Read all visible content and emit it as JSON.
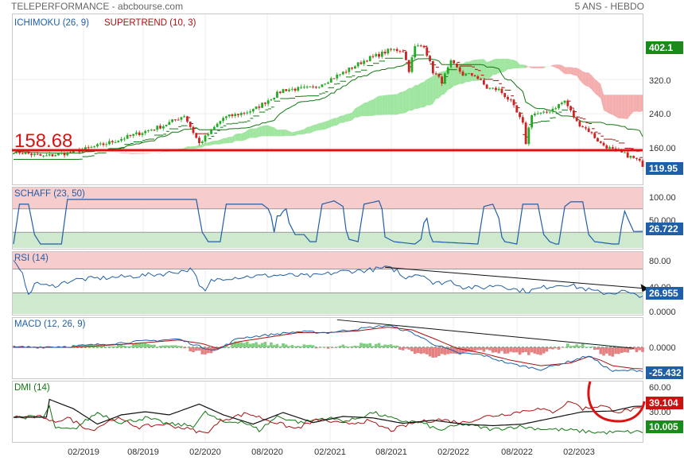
{
  "header": {
    "source": "TELEPERFORMANCE - abcbourse.com",
    "period": "5 ANS - HEBDO"
  },
  "colors": {
    "up": "#22aa22",
    "down": "#cc2222",
    "cloud_bull": "#8fe08f",
    "cloud_bear": "#f2a0a0",
    "supertrend": "#aa1111",
    "kijun": "#117711",
    "blue": "#1f5fa8",
    "black": "#111111",
    "badge_green": "#1a8a1a",
    "badge_blue": "#1f5fa8",
    "badge_red": "#cc1111",
    "zone_red": "#f7cccc",
    "zone_green": "#cfe9cf",
    "hline": "#dd1111"
  },
  "x_axis": {
    "labels": [
      "02/2019",
      "08/2019",
      "02/2020",
      "08/2020",
      "02/2021",
      "08/2021",
      "02/2022",
      "08/2022",
      "02/2023"
    ]
  },
  "panels": {
    "price": {
      "titles": [
        {
          "text": "ICHIMOKU (26, 9)",
          "color": "#1f5fa8"
        },
        {
          "text": "SUPERTREND (10, 3)",
          "color": "#aa1111"
        }
      ],
      "ticks": [
        "320.0",
        "240.0",
        "160.00"
      ],
      "badges": [
        {
          "text": "402.1",
          "color": "#1a8a1a"
        },
        {
          "text": "119.95",
          "color": "#1f5fa8"
        }
      ],
      "level_label": "158.68",
      "series": {
        "close_anchors": [
          [
            0,
            152
          ],
          [
            10,
            140
          ],
          [
            20,
            150
          ],
          [
            30,
            168
          ],
          [
            40,
            190
          ],
          [
            50,
            212
          ],
          [
            57,
            236
          ],
          [
            62,
            170
          ],
          [
            70,
            230
          ],
          [
            80,
            248
          ],
          [
            90,
            296
          ],
          [
            100,
            300
          ],
          [
            110,
            336
          ],
          [
            118,
            368
          ],
          [
            122,
            378
          ],
          [
            126,
            390
          ],
          [
            130,
            388
          ],
          [
            132,
            342
          ],
          [
            134,
            396
          ],
          [
            137,
            400
          ],
          [
            140,
            338
          ],
          [
            143,
            315
          ],
          [
            146,
            360
          ],
          [
            150,
            332
          ],
          [
            154,
            330
          ],
          [
            158,
            300
          ],
          [
            162,
            296
          ],
          [
            166,
            268
          ],
          [
            170,
            215
          ],
          [
            171,
            172
          ],
          [
            173,
            240
          ],
          [
            177,
            240
          ],
          [
            181,
            256
          ],
          [
            184,
            270
          ],
          [
            188,
            220
          ],
          [
            192,
            200
          ],
          [
            196,
            170
          ],
          [
            200,
            155
          ],
          [
            204,
            145
          ],
          [
            208,
            132
          ],
          [
            210,
            120
          ]
        ]
      }
    },
    "schaff": {
      "title": "SCHAFF (23, 50)",
      "ticks": [
        "100.00",
        "50.000"
      ],
      "badge": {
        "text": "26.722",
        "color": "#1f5fa8"
      },
      "upper": 75,
      "lower": 25,
      "series": {
        "anchors": [
          [
            0,
            0
          ],
          [
            2,
            85
          ],
          [
            5,
            85
          ],
          [
            7,
            20
          ],
          [
            9,
            0
          ],
          [
            16,
            0
          ],
          [
            18,
            95
          ],
          [
            61,
            95
          ],
          [
            63,
            25
          ],
          [
            65,
            5
          ],
          [
            69,
            5
          ],
          [
            71,
            85
          ],
          [
            83,
            85
          ],
          [
            85,
            75
          ],
          [
            86,
            60
          ],
          [
            87,
            25
          ],
          [
            88,
            60
          ],
          [
            89,
            60
          ],
          [
            90,
            70
          ],
          [
            91,
            75
          ],
          [
            92,
            45
          ],
          [
            94,
            20
          ],
          [
            97,
            20
          ],
          [
            99,
            5
          ],
          [
            101,
            5
          ],
          [
            103,
            85
          ],
          [
            107,
            92
          ],
          [
            110,
            80
          ],
          [
            111,
            30
          ],
          [
            112,
            10
          ],
          [
            115,
            5
          ],
          [
            117,
            85
          ],
          [
            122,
            92
          ],
          [
            123,
            75
          ],
          [
            124,
            15
          ],
          [
            127,
            5
          ],
          [
            134,
            0
          ],
          [
            136,
            10
          ],
          [
            137,
            45
          ],
          [
            138,
            55
          ],
          [
            139,
            20
          ],
          [
            140,
            5
          ],
          [
            155,
            0
          ],
          [
            157,
            80
          ],
          [
            160,
            85
          ],
          [
            162,
            55
          ],
          [
            163,
            15
          ],
          [
            164,
            5
          ],
          [
            168,
            0
          ],
          [
            170,
            85
          ],
          [
            175,
            85
          ],
          [
            177,
            20
          ],
          [
            179,
            5
          ],
          [
            181,
            0
          ],
          [
            182,
            0
          ],
          [
            184,
            80
          ],
          [
            186,
            90
          ],
          [
            190,
            90
          ],
          [
            192,
            20
          ],
          [
            194,
            5
          ],
          [
            200,
            0
          ],
          [
            202,
            0
          ],
          [
            203,
            40
          ],
          [
            204,
            70
          ],
          [
            205,
            55
          ],
          [
            207,
            26.7
          ]
        ]
      }
    },
    "rsi": {
      "title": "RSI (14)",
      "ticks": [
        "80.00",
        "40.00",
        "0.0000"
      ],
      "badge": {
        "text": "26.955",
        "color": "#1f5fa8"
      },
      "upper": 70,
      "lower": 30,
      "series": {
        "anchors": [
          [
            0,
            82
          ],
          [
            3,
            60
          ],
          [
            5,
            30
          ],
          [
            8,
            48
          ],
          [
            12,
            40
          ],
          [
            20,
            52
          ],
          [
            30,
            55
          ],
          [
            40,
            58
          ],
          [
            50,
            62
          ],
          [
            60,
            70
          ],
          [
            62,
            40
          ],
          [
            64,
            32
          ],
          [
            66,
            50
          ],
          [
            70,
            55
          ],
          [
            80,
            58
          ],
          [
            90,
            60
          ],
          [
            100,
            58
          ],
          [
            110,
            66
          ],
          [
            118,
            68
          ],
          [
            124,
            72
          ],
          [
            128,
            68
          ],
          [
            130,
            55
          ],
          [
            134,
            62
          ],
          [
            138,
            58
          ],
          [
            140,
            45
          ],
          [
            146,
            50
          ],
          [
            150,
            40
          ],
          [
            156,
            38
          ],
          [
            162,
            44
          ],
          [
            168,
            35
          ],
          [
            172,
            33
          ],
          [
            176,
            38
          ],
          [
            180,
            42
          ],
          [
            184,
            45
          ],
          [
            188,
            40
          ],
          [
            192,
            35
          ],
          [
            196,
            30
          ],
          [
            200,
            30
          ],
          [
            204,
            33
          ],
          [
            206,
            27
          ]
        ]
      },
      "trendline": [
        [
          124,
          73
        ],
        [
          212,
          37
        ]
      ]
    },
    "macd": {
      "title": "MACD (12, 26, 9)",
      "ticks": [
        "0.0000"
      ],
      "badge": {
        "text": "-25.432",
        "color": "#1f5fa8"
      },
      "ylim": [
        -32,
        32
      ],
      "macd_anchors": [
        [
          0,
          0
        ],
        [
          20,
          1
        ],
        [
          40,
          6
        ],
        [
          55,
          9
        ],
        [
          63,
          0
        ],
        [
          68,
          -3
        ],
        [
          75,
          10
        ],
        [
          95,
          17
        ],
        [
          105,
          16
        ],
        [
          115,
          20
        ],
        [
          125,
          24
        ],
        [
          133,
          16
        ],
        [
          140,
          4
        ],
        [
          148,
          -6
        ],
        [
          156,
          -8
        ],
        [
          166,
          -18
        ],
        [
          176,
          -24
        ],
        [
          186,
          -15
        ],
        [
          192,
          -9
        ],
        [
          196,
          -18
        ],
        [
          200,
          -26
        ],
        [
          207,
          -25
        ]
      ],
      "signal_anchors": [
        [
          0,
          0
        ],
        [
          20,
          0
        ],
        [
          40,
          4
        ],
        [
          55,
          8
        ],
        [
          63,
          4
        ],
        [
          68,
          -1
        ],
        [
          75,
          6
        ],
        [
          95,
          16
        ],
        [
          105,
          16
        ],
        [
          115,
          18
        ],
        [
          125,
          22
        ],
        [
          133,
          19
        ],
        [
          140,
          10
        ],
        [
          148,
          -1
        ],
        [
          156,
          -6
        ],
        [
          166,
          -14
        ],
        [
          176,
          -20
        ],
        [
          186,
          -17
        ],
        [
          192,
          -10
        ],
        [
          196,
          -14
        ],
        [
          200,
          -20
        ],
        [
          207,
          -23
        ]
      ],
      "trendline": [
        [
          108,
          30
        ],
        [
          207,
          -1
        ]
      ]
    },
    "dmi": {
      "title": "DMI (14)",
      "ticks": [
        "60.00",
        "30.00"
      ],
      "badges": [
        {
          "text": "39.104",
          "color": "#cc1111"
        },
        {
          "text": "10.005",
          "color": "#1a8a1a"
        }
      ],
      "ylim": [
        0,
        68
      ],
      "adx_anchors": [
        [
          0,
          29
        ],
        [
          11,
          29
        ],
        [
          12,
          52
        ],
        [
          20,
          40
        ],
        [
          28,
          20
        ],
        [
          36,
          32
        ],
        [
          44,
          36
        ],
        [
          52,
          32
        ],
        [
          62,
          46
        ],
        [
          70,
          32
        ],
        [
          80,
          20
        ],
        [
          90,
          35
        ],
        [
          100,
          22
        ],
        [
          110,
          30
        ],
        [
          120,
          28
        ],
        [
          130,
          21
        ],
        [
          140,
          25
        ],
        [
          150,
          20
        ],
        [
          160,
          18
        ],
        [
          170,
          20
        ],
        [
          180,
          28
        ],
        [
          190,
          36
        ],
        [
          200,
          37
        ],
        [
          207,
          43
        ]
      ],
      "plus_anchors": [
        [
          0,
          29
        ],
        [
          10,
          29
        ],
        [
          12,
          42
        ],
        [
          14,
          14
        ],
        [
          20,
          13
        ],
        [
          28,
          35
        ],
        [
          36,
          22
        ],
        [
          44,
          28
        ],
        [
          52,
          20
        ],
        [
          60,
          18
        ],
        [
          64,
          35
        ],
        [
          70,
          22
        ],
        [
          76,
          24
        ],
        [
          82,
          12
        ],
        [
          88,
          30
        ],
        [
          96,
          22
        ],
        [
          104,
          28
        ],
        [
          112,
          24
        ],
        [
          120,
          35
        ],
        [
          128,
          25
        ],
        [
          136,
          22
        ],
        [
          142,
          12
        ],
        [
          150,
          20
        ],
        [
          160,
          13
        ],
        [
          168,
          17
        ],
        [
          176,
          14
        ],
        [
          186,
          12
        ],
        [
          196,
          9
        ],
        [
          207,
          10
        ]
      ],
      "minus_anchors": [
        [
          0,
          29
        ],
        [
          10,
          29
        ],
        [
          12,
          22
        ],
        [
          18,
          28
        ],
        [
          26,
          12
        ],
        [
          34,
          28
        ],
        [
          42,
          16
        ],
        [
          50,
          20
        ],
        [
          58,
          14
        ],
        [
          64,
          8
        ],
        [
          70,
          26
        ],
        [
          78,
          34
        ],
        [
          86,
          24
        ],
        [
          94,
          14
        ],
        [
          102,
          26
        ],
        [
          110,
          20
        ],
        [
          118,
          24
        ],
        [
          126,
          12
        ],
        [
          134,
          22
        ],
        [
          142,
          26
        ],
        [
          150,
          22
        ],
        [
          158,
          30
        ],
        [
          166,
          34
        ],
        [
          174,
          40
        ],
        [
          180,
          36
        ],
        [
          186,
          50
        ],
        [
          190,
          40
        ],
        [
          196,
          44
        ],
        [
          202,
          36
        ],
        [
          207,
          39
        ]
      ]
    }
  }
}
